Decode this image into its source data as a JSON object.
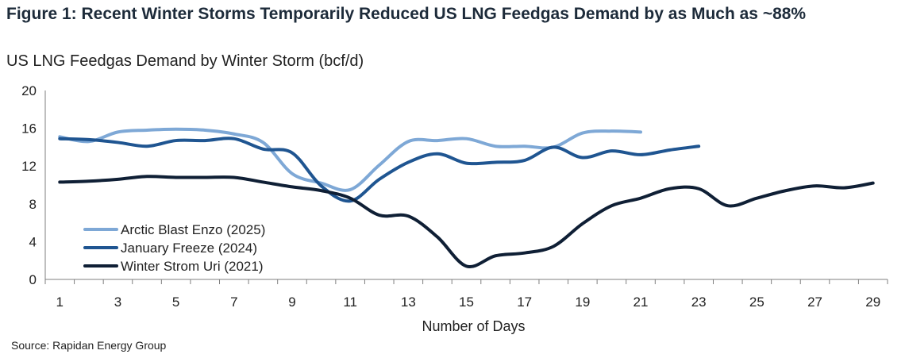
{
  "title": "Figure 1: Recent Winter Storms Temporarily Reduced US LNG Feedgas Demand by as Much as ~88%",
  "subtitle": "US LNG Feedgas Demand by Winter Storm (bcf/d)",
  "source": "Source: Rapidan Energy Group",
  "chart_data": {
    "type": "line",
    "xlabel": "Number of Days",
    "ylabel": "",
    "xlim": [
      0.5,
      29.5
    ],
    "ylim": [
      0,
      20
    ],
    "xticks": [
      1,
      3,
      5,
      7,
      9,
      11,
      13,
      15,
      17,
      19,
      21,
      23,
      25,
      27,
      29
    ],
    "yticks": [
      0,
      4,
      8,
      12,
      16,
      20
    ],
    "grid": false,
    "legend_position": "bottom-left",
    "series": [
      {
        "name": "Arctic Blast Enzo (2025)",
        "color": "#7ea8d6",
        "x": [
          1,
          2,
          3,
          4,
          5,
          6,
          7,
          8,
          9,
          10,
          11,
          12,
          13,
          14,
          15,
          16,
          17,
          18,
          19,
          20,
          21
        ],
        "values": [
          15.1,
          14.6,
          15.6,
          15.8,
          15.9,
          15.8,
          15.4,
          14.5,
          11.2,
          10.2,
          9.5,
          12.1,
          14.6,
          14.7,
          14.9,
          14.1,
          14.1,
          14.0,
          15.5,
          15.7,
          15.6
        ]
      },
      {
        "name": "January Freeze (2024)",
        "color": "#1f5591",
        "x": [
          1,
          2,
          3,
          4,
          5,
          6,
          7,
          8,
          9,
          10,
          11,
          12,
          13,
          14,
          15,
          16,
          17,
          18,
          19,
          20,
          21,
          22,
          23
        ],
        "values": [
          14.9,
          14.8,
          14.5,
          14.1,
          14.7,
          14.7,
          14.9,
          13.8,
          13.4,
          9.9,
          8.3,
          10.6,
          12.4,
          13.3,
          12.3,
          12.4,
          12.6,
          14.0,
          12.9,
          13.6,
          13.2,
          13.7,
          14.1
        ]
      },
      {
        "name": "Winter Strom Uri (2021)",
        "color": "#0f1f35",
        "x": [
          1,
          2,
          3,
          4,
          5,
          6,
          7,
          8,
          9,
          10,
          11,
          12,
          13,
          14,
          15,
          16,
          17,
          18,
          19,
          20,
          21,
          22,
          23,
          24,
          25,
          26,
          27,
          28,
          29
        ],
        "values": [
          10.3,
          10.4,
          10.6,
          10.9,
          10.8,
          10.8,
          10.8,
          10.3,
          9.8,
          9.4,
          8.6,
          6.8,
          6.7,
          4.5,
          1.4,
          2.5,
          2.8,
          3.5,
          5.9,
          7.8,
          8.6,
          9.6,
          9.6,
          7.8,
          8.6,
          9.4,
          9.9,
          9.7,
          10.2
        ]
      }
    ]
  }
}
